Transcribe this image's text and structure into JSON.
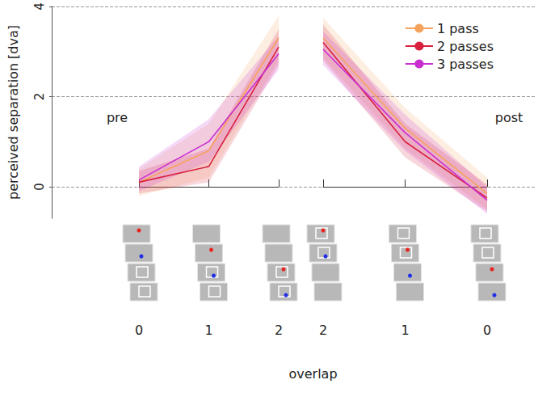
{
  "chart_data": {
    "type": "line",
    "ylabel": "perceived separation [dva]",
    "xlabel": "overlap",
    "ylim": [
      -0.7,
      4
    ],
    "yticks": [
      0,
      2,
      4
    ],
    "grid": true,
    "legend": "upper right",
    "panels": [
      {
        "annotation": "pre",
        "categories": [
          "0",
          "1",
          "2"
        ],
        "series": [
          {
            "name": "1 pass",
            "color": "#f5a35c",
            "values": [
              0.1,
              0.8,
              3.3
            ],
            "lower": [
              -0.2,
              0.2,
              2.8
            ],
            "upper": [
              0.4,
              1.4,
              3.8
            ]
          },
          {
            "name": "2 passes",
            "color": "#d8203f",
            "values": [
              0.1,
              0.45,
              3.1
            ],
            "lower": [
              -0.15,
              0.1,
              2.7
            ],
            "upper": [
              0.35,
              0.85,
              3.5
            ]
          },
          {
            "name": "3 passes",
            "color": "#c92fd0",
            "values": [
              0.15,
              1.0,
              2.95
            ],
            "lower": [
              -0.1,
              0.55,
              2.6
            ],
            "upper": [
              0.45,
              1.5,
              3.35
            ]
          }
        ]
      },
      {
        "annotation": "post",
        "categories": [
          "2",
          "1",
          "0"
        ],
        "series": [
          {
            "name": "1 pass",
            "color": "#f5a35c",
            "values": [
              3.3,
              1.3,
              -0.15
            ],
            "lower": [
              2.85,
              0.85,
              -0.5
            ],
            "upper": [
              3.75,
              1.75,
              0.2
            ]
          },
          {
            "name": "2 passes",
            "color": "#d8203f",
            "values": [
              3.2,
              1.0,
              -0.25
            ],
            "lower": [
              2.8,
              0.65,
              -0.55
            ],
            "upper": [
              3.6,
              1.4,
              0.05
            ]
          },
          {
            "name": "3 passes",
            "color": "#c92fd0",
            "values": [
              3.05,
              1.2,
              -0.3
            ],
            "lower": [
              2.7,
              0.8,
              -0.6
            ],
            "upper": [
              3.45,
              1.6,
              0.0
            ]
          }
        ]
      }
    ]
  }
}
